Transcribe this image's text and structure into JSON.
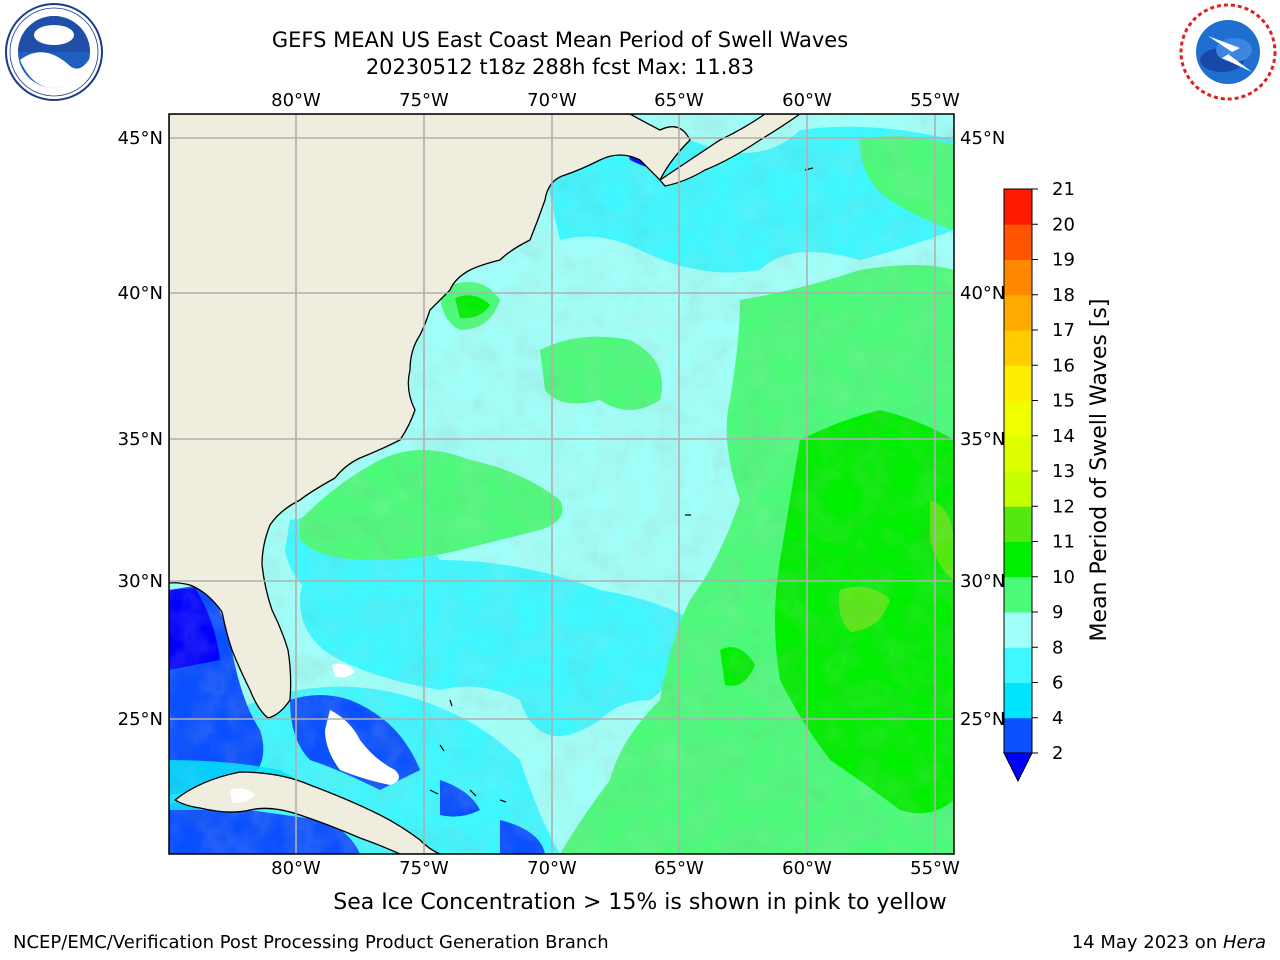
{
  "header": {
    "title_line1": "GEFS MEAN US East Coast Mean Period of Swell Waves",
    "title_line2": "20230512 t18z 288h fcst   Max: 11.83",
    "logo_left": "noaa-logo",
    "logo_right": "nws-logo"
  },
  "map": {
    "lon_labels": [
      "80°W",
      "75°W",
      "70°W",
      "65°W",
      "60°W",
      "55°W"
    ],
    "lat_labels": [
      "45°N",
      "40°N",
      "35°N",
      "30°N",
      "25°N"
    ],
    "land_color": "#efedde",
    "grid_color": "#b0b0b0"
  },
  "colorbar": {
    "label": "Mean Period of Swell Waves [s]",
    "ticks": [
      "2",
      "4",
      "6",
      "8",
      "9",
      "10",
      "11",
      "12",
      "13",
      "14",
      "15",
      "16",
      "17",
      "18",
      "19",
      "20",
      "21"
    ],
    "colors": [
      "#0a50ff",
      "#00e5ff",
      "#3ff7ff",
      "#a0fff8",
      "#4cfa7a",
      "#00ee00",
      "#55e810",
      "#c5ff00",
      "#ddff00",
      "#f0ff00",
      "#ffee00",
      "#ffcc00",
      "#ffaa00",
      "#ff8800",
      "#ff5500",
      "#ff1a00"
    ],
    "under_color": "#0000ff"
  },
  "footer": {
    "note": "Sea Ice Concentration > 15% is shown in pink to yellow",
    "credit_left": "NCEP/EMC/Verification Post Processing Product Generation Branch",
    "credit_date": "14 May 2023 on ",
    "credit_machine": "Hera"
  }
}
